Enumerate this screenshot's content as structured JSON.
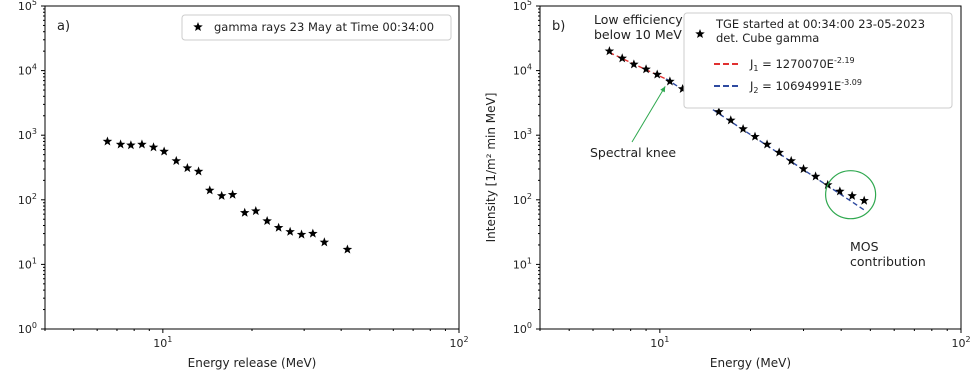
{
  "chart_data": [
    {
      "type": "scatter",
      "panel_label": "a)",
      "xlabel": "Energy release (MeV)",
      "ylabel": "",
      "x_scale": "log",
      "y_scale": "log",
      "xlim": [
        4,
        100
      ],
      "ylim": [
        1,
        100000
      ],
      "x_ticks": [
        {
          "value": 10,
          "base": "10",
          "exp": "1"
        },
        {
          "value": 100,
          "base": "10",
          "exp": "2"
        }
      ],
      "y_ticks": [
        {
          "value": 1,
          "base": "10",
          "exp": "0"
        },
        {
          "value": 10,
          "base": "10",
          "exp": "1"
        },
        {
          "value": 100,
          "base": "10",
          "exp": "2"
        },
        {
          "value": 1000,
          "base": "10",
          "exp": "3"
        },
        {
          "value": 10000,
          "base": "10",
          "exp": "4"
        },
        {
          "value": 100000,
          "base": "10",
          "exp": "5"
        }
      ],
      "legend": {
        "position": "top-right",
        "entries": [
          "gamma rays 23 May at Time 00:34:00"
        ]
      },
      "series": [
        {
          "name": "gamma rays 23 May at Time 00:34:00",
          "marker": "star",
          "color": "#000000",
          "points": [
            [
              6.5,
              800
            ],
            [
              7.2,
              720
            ],
            [
              7.8,
              700
            ],
            [
              8.5,
              720
            ],
            [
              9.3,
              650
            ],
            [
              10.1,
              560
            ],
            [
              11.1,
              400
            ],
            [
              12.1,
              310
            ],
            [
              13.2,
              275
            ],
            [
              14.4,
              140
            ],
            [
              15.8,
              115
            ],
            [
              17.2,
              120
            ],
            [
              18.9,
              63
            ],
            [
              20.6,
              67
            ],
            [
              22.5,
              47
            ],
            [
              24.6,
              37
            ],
            [
              26.9,
              32
            ],
            [
              29.4,
              29
            ],
            [
              32.1,
              30
            ],
            [
              35.1,
              22
            ],
            [
              42.0,
              17
            ]
          ]
        }
      ]
    },
    {
      "type": "scatter",
      "panel_label": "b)",
      "xlabel": "Energy (MeV)",
      "ylabel": "Intensity [1/m² min MeV]",
      "x_scale": "log",
      "y_scale": "log",
      "xlim": [
        4,
        100
      ],
      "ylim": [
        1,
        100000
      ],
      "x_ticks": [
        {
          "value": 10,
          "base": "10",
          "exp": "1"
        },
        {
          "value": 100,
          "base": "10",
          "exp": "2"
        }
      ],
      "y_ticks": [
        {
          "value": 1,
          "base": "10",
          "exp": "0"
        },
        {
          "value": 10,
          "base": "10",
          "exp": "1"
        },
        {
          "value": 100,
          "base": "10",
          "exp": "2"
        },
        {
          "value": 1000,
          "base": "10",
          "exp": "3"
        },
        {
          "value": 10000,
          "base": "10",
          "exp": "4"
        },
        {
          "value": 100000,
          "base": "10",
          "exp": "5"
        }
      ],
      "legend": {
        "position": "top-right",
        "entries": [
          {
            "label_line1": "TGE started at 00:34:00 23-05-2023",
            "label_line2": "det. Cube gamma",
            "kind": "star"
          },
          {
            "label": "J",
            "sub": "1",
            "eq": " =  1270070E",
            "exp": "-2.19",
            "kind": "dashed",
            "color": "#e03030"
          },
          {
            "label": "J",
            "sub": "2",
            "eq": " = 10694991E",
            "exp": "-3.09",
            "kind": "dashed",
            "color": "#2e4aa0"
          }
        ]
      },
      "series": [
        {
          "name": "TGE started at 00:34:00 23-05-2023 det. Cube gamma",
          "marker": "star",
          "color": "#000000",
          "points": [
            [
              6.8,
              20000
            ],
            [
              7.5,
              15500
            ],
            [
              8.2,
              12500
            ],
            [
              9.0,
              10500
            ],
            [
              9.8,
              8700
            ],
            [
              10.8,
              6800
            ],
            [
              11.9,
              5200
            ],
            [
              13.0,
              4000
            ],
            [
              14.3,
              3000
            ],
            [
              15.7,
              2300
            ],
            [
              17.2,
              1700
            ],
            [
              18.9,
              1250
            ],
            [
              20.7,
              950
            ],
            [
              22.7,
              720
            ],
            [
              24.9,
              540
            ],
            [
              27.3,
              400
            ],
            [
              30.0,
              300
            ],
            [
              32.9,
              230
            ],
            [
              36.1,
              170
            ],
            [
              39.6,
              135
            ],
            [
              43.5,
              115
            ],
            [
              47.7,
              97
            ]
          ]
        }
      ],
      "fits": [
        {
          "name": "J1",
          "A": 1270070,
          "gamma": -2.19,
          "x_range": [
            6.8,
            10.5
          ],
          "color": "#e03030"
        },
        {
          "name": "J2",
          "A": 10694991,
          "gamma": -3.09,
          "x_range": [
            10.5,
            48
          ],
          "color": "#2e4aa0"
        }
      ],
      "annotations": [
        {
          "text_lines": [
            "Low efficiency",
            "below 10 MeV"
          ]
        },
        {
          "text_lines": [
            "Spectral knee"
          ],
          "arrow_to": [
            10.5,
            6800
          ],
          "arrow_color": "#2fa84f"
        },
        {
          "text_lines": [
            "MOS",
            "contribution"
          ],
          "ellipse_center": [
            43,
            120
          ],
          "ellipse_color": "#2fa84f"
        }
      ]
    }
  ]
}
